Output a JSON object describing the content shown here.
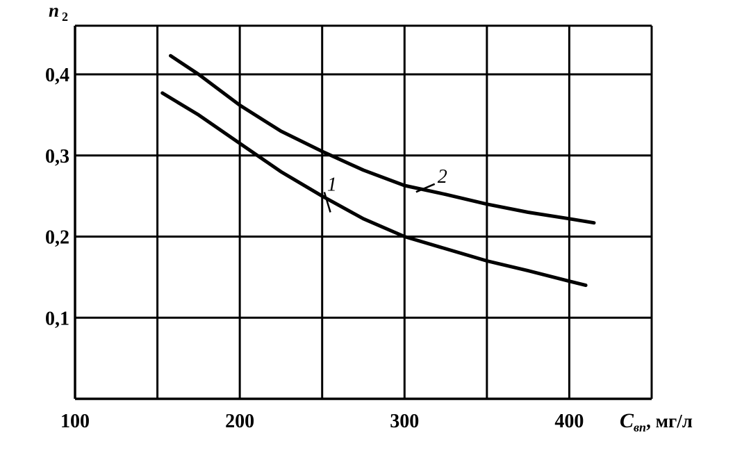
{
  "chart_data": {
    "type": "line",
    "xlabel": "C",
    "xlabel_sub": "вп",
    "xlabel_unit": ", мг/л",
    "ylabel": "n",
    "ylabel_sub": "2",
    "xlim": [
      100,
      450
    ],
    "ylim": [
      0.0,
      0.46
    ],
    "x_ticks": [
      100,
      200,
      300,
      400
    ],
    "x_tick_labels": [
      "100",
      "200",
      "300",
      "400"
    ],
    "y_ticks": [
      0.1,
      0.2,
      0.3,
      0.4
    ],
    "y_tick_labels": [
      "0,1",
      "0,2",
      "0,3",
      "0,4"
    ],
    "grid_x": [
      100,
      150,
      200,
      250,
      300,
      350,
      400,
      450
    ],
    "grid_y": [
      0.1,
      0.2,
      0.3,
      0.4,
      0.46
    ],
    "grid": true,
    "series": [
      {
        "name": "1",
        "label_at": [
          253,
          0.26
        ],
        "label_anchor": [
          255,
          0.23
        ],
        "points": [
          [
            153,
            0.377
          ],
          [
            175,
            0.35
          ],
          [
            200,
            0.315
          ],
          [
            225,
            0.28
          ],
          [
            250,
            0.25
          ],
          [
            275,
            0.222
          ],
          [
            300,
            0.2
          ],
          [
            325,
            0.185
          ],
          [
            350,
            0.17
          ],
          [
            375,
            0.158
          ],
          [
            400,
            0.145
          ],
          [
            410,
            0.14
          ]
        ]
      },
      {
        "name": "2",
        "label_at": [
          320,
          0.27
        ],
        "label_anchor": [
          307,
          0.255
        ],
        "points": [
          [
            158,
            0.423
          ],
          [
            175,
            0.4
          ],
          [
            200,
            0.362
          ],
          [
            225,
            0.33
          ],
          [
            250,
            0.305
          ],
          [
            275,
            0.282
          ],
          [
            300,
            0.263
          ],
          [
            325,
            0.252
          ],
          [
            350,
            0.24
          ],
          [
            375,
            0.23
          ],
          [
            400,
            0.222
          ],
          [
            415,
            0.217
          ]
        ]
      }
    ]
  }
}
